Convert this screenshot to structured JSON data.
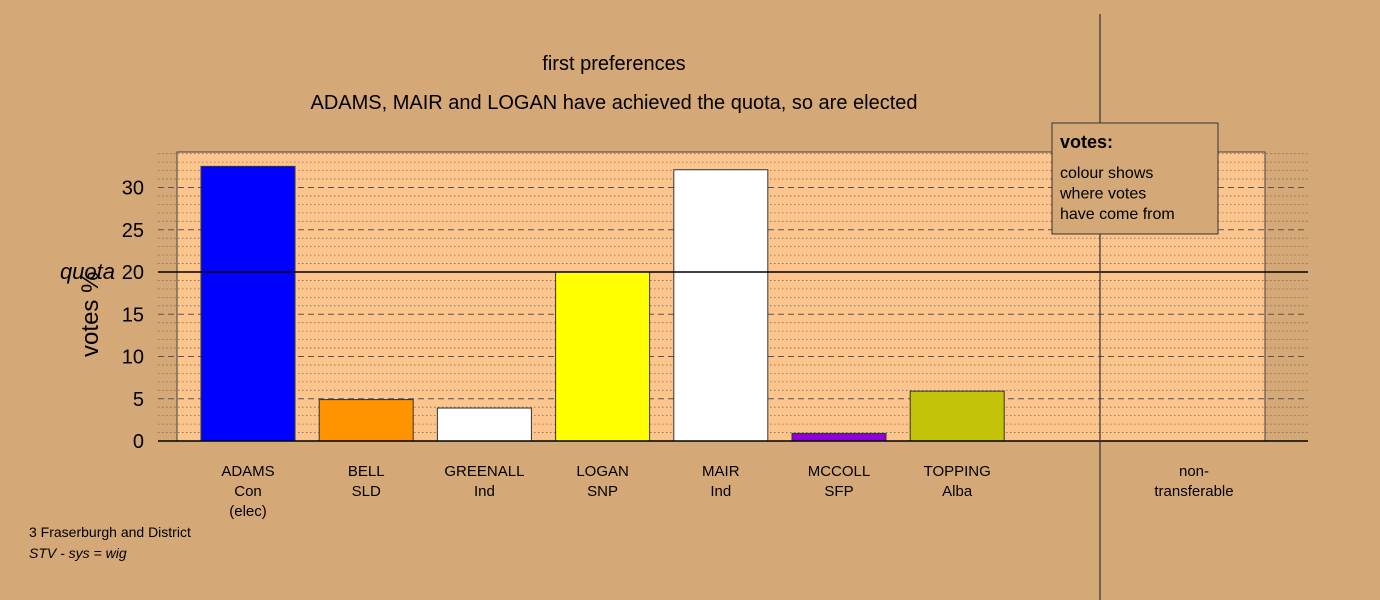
{
  "chart_data": {
    "type": "bar",
    "title": "first preferences",
    "subtitle": "ADAMS, MAIR and LOGAN have achieved the quota, so are elected",
    "ylabel": "votes %",
    "ylim": [
      0,
      34
    ],
    "yticks": [
      0,
      5,
      10,
      15,
      20,
      25,
      30
    ],
    "quota": {
      "label": "quota",
      "value": 20
    },
    "grid": true,
    "categories": [
      {
        "name": "ADAMS",
        "party": "Con",
        "status": "(elec)",
        "value": 32.5,
        "color": "#0000ff"
      },
      {
        "name": "BELL",
        "party": "SLD",
        "status": "",
        "value": 4.9,
        "color": "#ff9400"
      },
      {
        "name": "GREENALL",
        "party": "Ind",
        "status": "",
        "value": 3.9,
        "color": "#ffffff"
      },
      {
        "name": "LOGAN",
        "party": "SNP",
        "status": "",
        "value": 20.0,
        "color": "#ffff00"
      },
      {
        "name": "MAIR",
        "party": "Ind",
        "status": "",
        "value": 32.1,
        "color": "#ffffff"
      },
      {
        "name": "MCCOLL",
        "party": "SFP",
        "status": "",
        "value": 0.9,
        "color": "#8f00d6"
      },
      {
        "name": "TOPPING",
        "party": "Alba",
        "status": "",
        "value": 5.9,
        "color": "#c3c40a"
      }
    ],
    "nontransferable": {
      "label_line1": "non-",
      "label_line2": "transferable",
      "value": 0
    },
    "legend": {
      "title": "votes:",
      "lines": [
        "colour shows",
        "where votes",
        "have come from"
      ],
      "placement": "top-right"
    }
  },
  "footer": {
    "ward": "3 Fraserburgh and District",
    "system": "STV - sys = wig"
  },
  "colors": {
    "background": "#d4a877",
    "plot_area": "#fdc58e",
    "axis": "#000000"
  }
}
